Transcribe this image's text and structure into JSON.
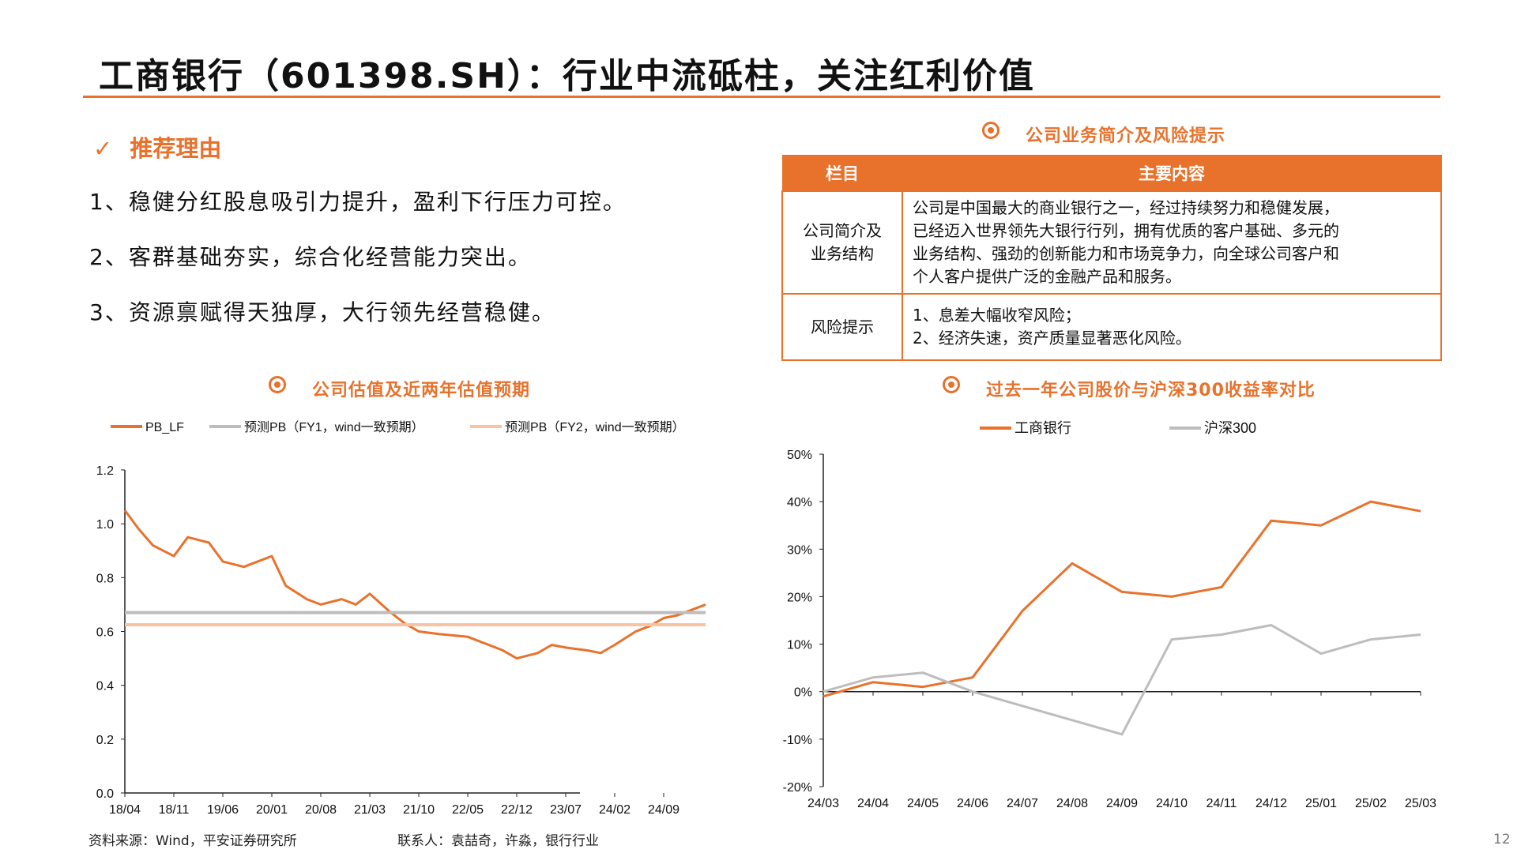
{
  "title": "工商银行（601398.SH）：行业中流砥柱，关注红利价值",
  "reasons": {
    "check": "✓",
    "heading": "推荐理由",
    "items": [
      "1、稳健分红股息吸引力提升，盈利下行压力可控。",
      "2、客群基础夯实，综合化经营能力突出。",
      "3、资源禀赋得天独厚，大行领先经营稳健。"
    ]
  },
  "info_table": {
    "section_title": "公司业务简介及风险提示",
    "headers": [
      "栏目",
      "主要内容"
    ],
    "rows": [
      {
        "category_lines": [
          "公司简介及",
          "业务结构"
        ],
        "content_lines": [
          "公司是中国最大的商业银行之一，经过持续努力和稳健发展，",
          "已经迈入世界领先大银行行列，拥有优质的客户基础、多元的",
          "业务结构、强劲的创新能力和市场竞争力，向全球公司客户和",
          "个人客户提供广泛的金融产品和服务。"
        ]
      },
      {
        "category_lines": [
          "风险提示"
        ],
        "content_lines": [
          "1、息差大幅收窄风险；",
          "2、经济失速，资产质量显著恶化风险。"
        ]
      }
    ]
  },
  "footer": {
    "source": "资料来源：Wind，平安证券研究所",
    "contact": "联系人：袁喆奇，许淼，银行行业",
    "page": "12"
  },
  "colors": {
    "accent": "#e8722c",
    "gray": "#bdbdbd",
    "light_orange": "#f9c3a2"
  },
  "chart_data": [
    {
      "type": "line",
      "title": "公司估值及近两年估值预期",
      "ylim": [
        0.0,
        1.2
      ],
      "yticks": [
        "0.0",
        "0.2",
        "0.4",
        "0.6",
        "0.8",
        "1.0",
        "1.2"
      ],
      "xticks": [
        "18/04",
        "18/11",
        "19/06",
        "20/01",
        "20/08",
        "21/03",
        "21/10",
        "22/05",
        "22/12",
        "23/07",
        "24/02",
        "24/09"
      ],
      "legend_position": "top",
      "series": [
        {
          "name": "PB_LF",
          "color": "#e8722c",
          "x": [
            "18/04",
            "18/06",
            "18/08",
            "18/11",
            "19/01",
            "19/04",
            "19/06",
            "19/09",
            "20/01",
            "20/03",
            "20/06",
            "20/08",
            "20/11",
            "21/01",
            "21/03",
            "21/06",
            "21/08",
            "21/10",
            "22/01",
            "22/05",
            "22/08",
            "22/10",
            "22/12",
            "23/03",
            "23/05",
            "23/07",
            "23/10",
            "23/12",
            "24/02",
            "24/05",
            "24/07",
            "24/09",
            "24/11",
            "25/01",
            "25/03"
          ],
          "values": [
            1.05,
            0.98,
            0.92,
            0.88,
            0.95,
            0.93,
            0.86,
            0.84,
            0.88,
            0.77,
            0.72,
            0.7,
            0.72,
            0.7,
            0.74,
            0.67,
            0.63,
            0.6,
            0.59,
            0.58,
            0.55,
            0.53,
            0.5,
            0.52,
            0.55,
            0.54,
            0.53,
            0.52,
            0.55,
            0.6,
            0.62,
            0.65,
            0.66,
            0.68,
            0.7
          ]
        },
        {
          "name": "预测PB（FY1，wind一致预期）",
          "color": "#bdbdbd",
          "x": [
            "18/04",
            "25/03"
          ],
          "values": [
            0.67,
            0.67
          ]
        },
        {
          "name": "预测PB（FY2，wind一致预期）",
          "color": "#f9c3a2",
          "x": [
            "18/04",
            "25/03"
          ],
          "values": [
            0.625,
            0.625
          ]
        }
      ]
    },
    {
      "type": "line",
      "title": "过去一年公司股价与沪深300收益率对比",
      "ylim": [
        -20,
        50
      ],
      "yticks": [
        "-20%",
        "-10%",
        "0%",
        "10%",
        "20%",
        "30%",
        "40%",
        "50%"
      ],
      "xticks": [
        "24/03",
        "24/04",
        "24/05",
        "24/06",
        "24/07",
        "24/08",
        "24/09",
        "24/10",
        "24/11",
        "24/12",
        "25/01",
        "25/02",
        "25/03"
      ],
      "legend_position": "top",
      "series": [
        {
          "name": "工商银行",
          "color": "#e8722c",
          "x": [
            "24/03",
            "24/04",
            "24/05",
            "24/06",
            "24/07",
            "24/08",
            "24/09",
            "24/10",
            "24/11",
            "24/12",
            "25/01",
            "25/02",
            "25/03"
          ],
          "values": [
            -1,
            2,
            1,
            3,
            17,
            27,
            21,
            20,
            22,
            36,
            35,
            40,
            38
          ]
        },
        {
          "name": "沪深300",
          "color": "#bdbdbd",
          "x": [
            "24/03",
            "24/04",
            "24/05",
            "24/06",
            "24/07",
            "24/08",
            "24/09",
            "24/10",
            "24/11",
            "24/12",
            "25/01",
            "25/02",
            "25/03"
          ],
          "values": [
            0,
            3,
            4,
            0,
            -3,
            -6,
            -9,
            11,
            12,
            14,
            8,
            11,
            12
          ]
        }
      ]
    }
  ]
}
